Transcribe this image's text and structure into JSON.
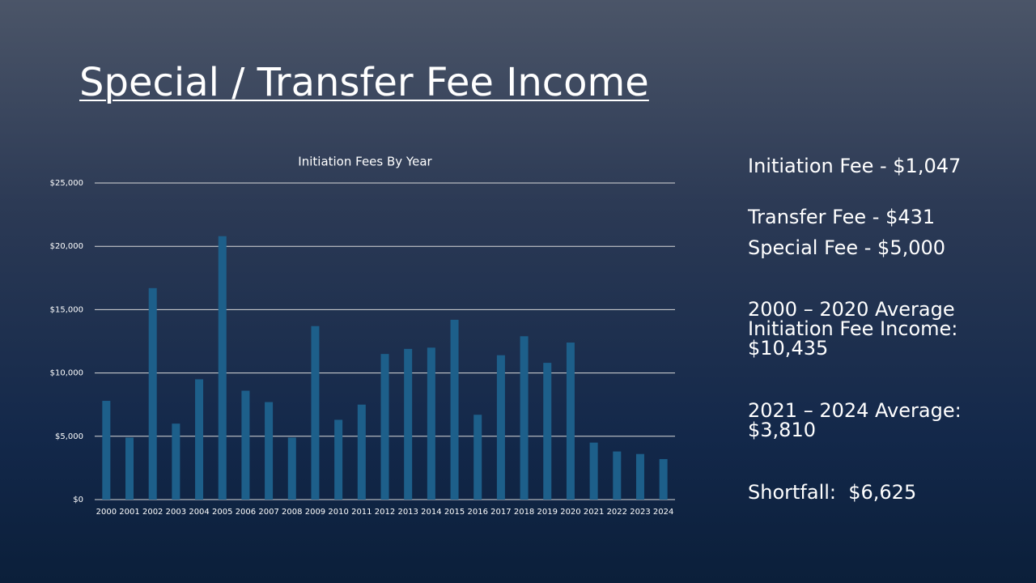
{
  "title": "Special / Transfer Fee Income",
  "notes": [
    "Initiation Fee - $1,047",
    "Transfer Fee - $431",
    "Special Fee - $5,000",
    "2000 – 2020 Average Initiation Fee Income:  $10,435",
    "2021 – 2024 Average:  $3,810",
    "Shortfall:  $6,625"
  ],
  "chart_data": {
    "type": "bar",
    "title": "Initiation Fees By Year",
    "categories": [
      "2000",
      "2001",
      "2002",
      "2003",
      "2004",
      "2005",
      "2006",
      "2007",
      "2008",
      "2009",
      "2010",
      "2011",
      "2012",
      "2013",
      "2014",
      "2015",
      "2016",
      "2017",
      "2018",
      "2019",
      "2020",
      "2021",
      "2022",
      "2023",
      "2024"
    ],
    "values": [
      7800,
      4900,
      16700,
      6000,
      9500,
      20800,
      8600,
      7700,
      4900,
      13700,
      6300,
      7500,
      11500,
      11900,
      12000,
      14200,
      6700,
      11400,
      12900,
      10800,
      12400,
      4500,
      3800,
      3600,
      3200
    ],
    "color": "#1d5f8a",
    "ylim": [
      0,
      25000
    ],
    "yticks": [
      {
        "value": 0,
        "label": "$0"
      },
      {
        "value": 5000,
        "label": "$5,000"
      },
      {
        "value": 10000,
        "label": "$10,000"
      },
      {
        "value": 15000,
        "label": "$15,000"
      },
      {
        "value": 20000,
        "label": "$20,000"
      },
      {
        "value": 25000,
        "label": "$25,000"
      }
    ],
    "grid": true
  }
}
